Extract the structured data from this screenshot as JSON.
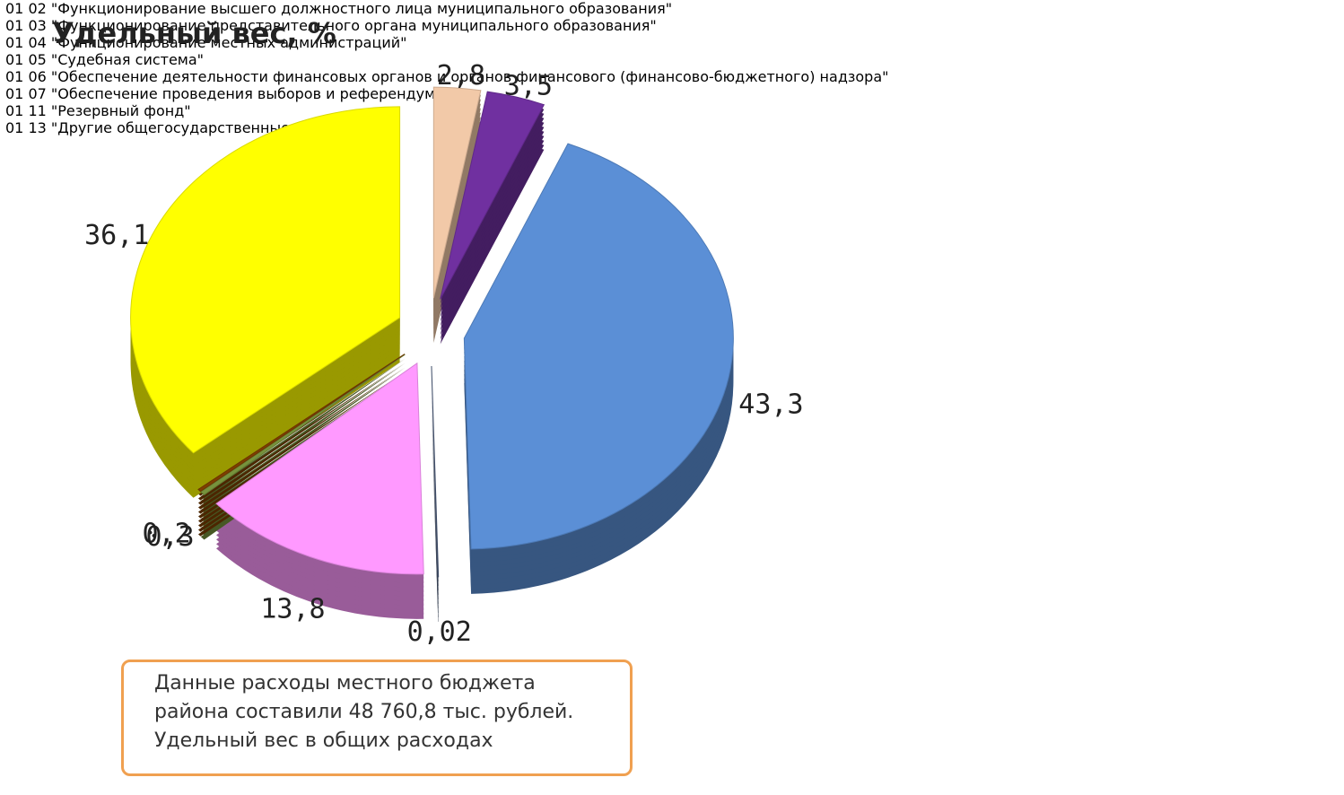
{
  "chart_data": {
    "type": "pie",
    "title": "Удельный вес, %",
    "categories": [
      "01 02 \"Функционирование высшего должностного лица муниципального образования\"",
      "01 03 \"Функционирование представительного органа муниципального образования\"",
      "01 04 \"Функционирование местных администраций\"",
      "01 05 \"Судебная система\"",
      "01 06 \"Обеспечение деятельности финансовых органов и органов финансового (финансово-бюджетного) надзора\"",
      "01 07 \"Обеспечение проведения выборов и референдумов\"",
      "01 11 \"Резервный фонд\"",
      "01 13 \"Другие общегосударственные вопросы\""
    ],
    "values": [
      2.8,
      3.5,
      43.3,
      0.02,
      13.8,
      0.3,
      0.2,
      36.1
    ],
    "value_labels": [
      "2,8",
      "3,5",
      "43,3",
      "0,02",
      "13,8",
      "0,3",
      "0,2",
      "36,1"
    ],
    "colors": [
      "#f2c9a8",
      "#7030a0",
      "#5b8fd6",
      "#4a5a7a",
      "#ff99ff",
      "#77933c",
      "#7f3f00",
      "#ffff00"
    ],
    "annotation": [
      "Данные расходы  местного бюджета",
      "района составили 48 760,8 тыс. рублей.",
      "Удельный вес в общих расходах"
    ]
  }
}
